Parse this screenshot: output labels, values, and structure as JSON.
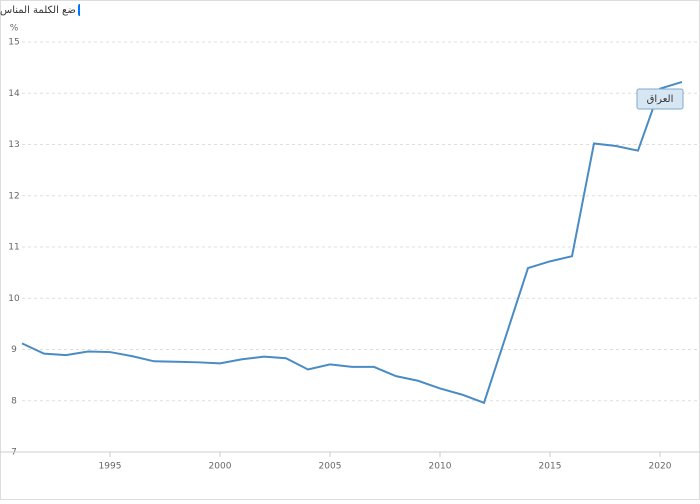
{
  "checkbox_label": "ضع الكلمة المناس",
  "chart_data": {
    "type": "line",
    "y_unit": "%",
    "x": [
      1991,
      1992,
      1993,
      1994,
      1995,
      1996,
      1997,
      1998,
      1999,
      2000,
      2001,
      2002,
      2003,
      2004,
      2005,
      2006,
      2007,
      2008,
      2009,
      2010,
      2011,
      2012,
      2013,
      2014,
      2015,
      2016,
      2017,
      2018,
      2019,
      2020,
      2021
    ],
    "series": [
      {
        "name": "العراق",
        "color": "#4a8bc2",
        "values": [
          9.12,
          8.92,
          8.89,
          8.96,
          8.95,
          8.87,
          8.77,
          8.76,
          8.75,
          8.73,
          8.81,
          8.86,
          8.83,
          8.61,
          8.71,
          8.66,
          8.66,
          8.48,
          8.39,
          8.24,
          8.12,
          7.96,
          9.27,
          10.59,
          10.72,
          10.82,
          13.02,
          12.97,
          12.88,
          14.09,
          14.22
        ]
      }
    ],
    "xlim": [
      1991,
      2021
    ],
    "xticks": [
      1995,
      2000,
      2005,
      2010,
      2015,
      2020
    ],
    "ylim": [
      7,
      15
    ],
    "yticks": [
      7,
      8,
      9,
      10,
      11,
      12,
      13,
      14,
      15
    ],
    "grid": true
  }
}
